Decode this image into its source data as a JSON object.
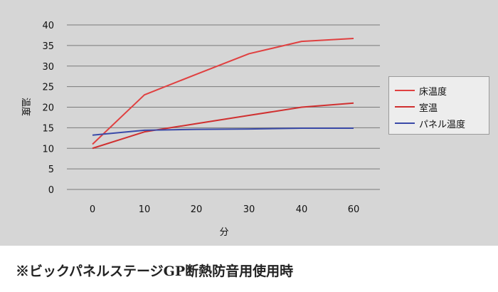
{
  "chart_data": {
    "type": "line",
    "title": "",
    "xlabel": "分",
    "ylabel": "温度",
    "categories": [
      "0",
      "10",
      "20",
      "30",
      "40",
      "60"
    ],
    "ylim": [
      0,
      40
    ],
    "yticks": [
      0,
      5,
      10,
      15,
      20,
      25,
      30,
      35,
      40
    ],
    "grid": true,
    "legend_position": "right",
    "series": [
      {
        "name": "床温度",
        "color": "#e04040",
        "values": [
          11,
          23,
          28,
          33,
          36,
          36.7
        ]
      },
      {
        "name": "室温",
        "color": "#d03030",
        "values": [
          10,
          14,
          16,
          18,
          20,
          21
        ]
      },
      {
        "name": "パネル温度",
        "color": "#3a4aa8",
        "values": [
          13.2,
          14.4,
          14.6,
          14.7,
          14.9,
          14.9
        ]
      }
    ]
  },
  "caption": "※ビックパネルステージGP断熱防音用使用時"
}
